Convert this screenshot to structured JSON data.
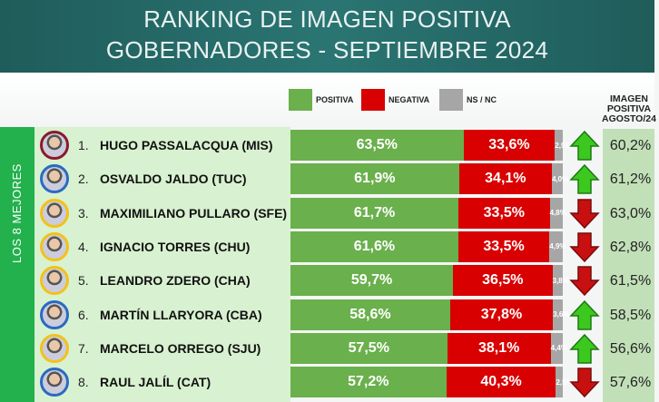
{
  "title": {
    "line1": "RANKING DE IMAGEN POSITIVA",
    "line2": "GOBERNADORES - SEPTIEMBRE 2024"
  },
  "legend": {
    "positive": "POSITIVA",
    "negative": "NEGATIVA",
    "nsnc": "NS / NC"
  },
  "colors": {
    "positive": "#6ab04c",
    "negative": "#d80000",
    "nsnc": "#a6a6a6",
    "up": "#3cc81e",
    "down": "#c81010"
  },
  "previous_header": "IMAGEN POSITIVA AGOSTO/24",
  "side_label": "LOS 8 MEJORES",
  "rows": [
    {
      "rank": "1.",
      "name": "HUGO PASSALACQUA (MIS)",
      "positive": 63.5,
      "positive_label": "63,5%",
      "negative": 33.6,
      "negative_label": "33,6%",
      "nsnc": 2.9,
      "nsnc_label": "2,9%",
      "trend": "up",
      "previous": "60,2%",
      "ring": "#8b1a2a"
    },
    {
      "rank": "2.",
      "name": "OSVALDO JALDO (TUC)",
      "positive": 61.9,
      "positive_label": "61,9%",
      "negative": 34.1,
      "negative_label": "34,1%",
      "nsnc": 4.0,
      "nsnc_label": "4,0%",
      "trend": "up",
      "previous": "61,2%",
      "ring": "#2a6bc0"
    },
    {
      "rank": "3.",
      "name": "MAXIMILIANO PULLARO (SFE)",
      "positive": 61.7,
      "positive_label": "61,7%",
      "negative": 33.5,
      "negative_label": "33,5%",
      "nsnc": 4.8,
      "nsnc_label": "4,8%",
      "trend": "down",
      "previous": "63,0%",
      "ring": "#f2c21a"
    },
    {
      "rank": "4.",
      "name": "IGNACIO TORRES (CHU)",
      "positive": 61.6,
      "positive_label": "61,6%",
      "negative": 33.5,
      "negative_label": "33,5%",
      "nsnc": 4.9,
      "nsnc_label": "4,9%",
      "trend": "down",
      "previous": "62,8%",
      "ring": "#f2c21a"
    },
    {
      "rank": "5.",
      "name": "LEANDRO ZDERO (CHA)",
      "positive": 59.7,
      "positive_label": "59,7%",
      "negative": 36.5,
      "negative_label": "36,5%",
      "nsnc": 3.8,
      "nsnc_label": "3,8%",
      "trend": "down",
      "previous": "61,5%",
      "ring": "#f2c21a"
    },
    {
      "rank": "6.",
      "name": "MARTÍN LLARYORA (CBA)",
      "positive": 58.6,
      "positive_label": "58,6%",
      "negative": 37.8,
      "negative_label": "37,8%",
      "nsnc": 3.6,
      "nsnc_label": "3,6%",
      "trend": "up",
      "previous": "58,5%",
      "ring": "#2a6bc0"
    },
    {
      "rank": "7.",
      "name": "MARCELO ORREGO (SJU)",
      "positive": 57.5,
      "positive_label": "57,5%",
      "negative": 38.1,
      "negative_label": "38,1%",
      "nsnc": 4.4,
      "nsnc_label": "4,4%",
      "trend": "up",
      "previous": "56,6%",
      "ring": "#f2c21a"
    },
    {
      "rank": "8.",
      "name": "RAUL JALÍL (CAT)",
      "positive": 57.2,
      "positive_label": "57,2%",
      "negative": 40.3,
      "negative_label": "40,3%",
      "nsnc": 2.5,
      "nsnc_label": "2,5%",
      "trend": "down",
      "previous": "57,6%",
      "ring": "#2a6bc0"
    }
  ]
}
